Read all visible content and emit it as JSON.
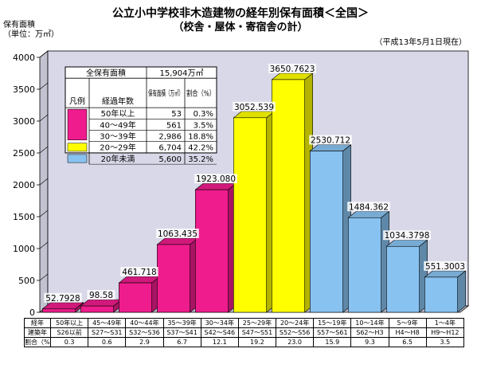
{
  "title": "公立小中学校非木造建物の経年別保有面積＜全国＞",
  "subtitle": "（校舎・屋体・寄宿舎の計）",
  "date_note": "（平成13年5月1日現在）",
  "ylabel_lines": [
    "保有面積",
    "（単位：万㎡）"
  ],
  "colors": {
    "magenta": "#ee1c8c",
    "yellow": "#ffff00",
    "blue": "#88c2f0",
    "back_wall": "#d8d8e8",
    "floor": "#b8b8c8"
  },
  "legend": {
    "total_label": "全保有面積",
    "total_value": "15,904万㎡",
    "header_legend": "凡例",
    "header_age": "経過年数",
    "header_area": "保有面積（万㎡）",
    "header_ratio": "割合（%）",
    "rows": [
      {
        "age": "50年以上",
        "area": "53",
        "ratio": "0.3%",
        "color": "#ee1c8c"
      },
      {
        "age": "40～49年",
        "area": "561",
        "ratio": "3.5%",
        "color": "#ee1c8c"
      },
      {
        "age": "30～39年",
        "area": "2,986",
        "ratio": "18.8%",
        "color": "#ee1c8c"
      },
      {
        "age": "20～29年",
        "area": "6,704",
        "ratio": "42.2%",
        "color": "#ffff00"
      },
      {
        "age": "20年未満",
        "area": "5,600",
        "ratio": "35.2%",
        "color": "#88c2f0"
      }
    ]
  },
  "table": {
    "row_headers": [
      "経年",
      "建築年",
      "割合（%）"
    ],
    "keinen": [
      "50年以上",
      "45～49年",
      "40～44年",
      "35～39年",
      "30～34年",
      "25～29年",
      "20～24年",
      "15～19年",
      "10～14年",
      "5～9年",
      "1～4年"
    ],
    "kenchiku": [
      "S26以前",
      "S27～S31",
      "S32～S36",
      "S37～S41",
      "S42～S46",
      "S47～S51",
      "S52～S56",
      "S57～S61",
      "S62～H3",
      "H4～H8",
      "H9～H12"
    ],
    "ratio": [
      "0.3",
      "0.6",
      "2.9",
      "6.7",
      "12.1",
      "19.2",
      "23.0",
      "15.9",
      "9.3",
      "6.5",
      "3.5"
    ]
  },
  "chart_data": {
    "type": "bar",
    "title": "公立小中学校非木造建物の経年別保有面積＜全国＞",
    "subtitle": "（校舎・屋体・寄宿舎の計）",
    "ylabel": "保有面積（単位：万㎡）",
    "ylim": [
      0,
      4000
    ],
    "yticks": [
      0,
      500,
      1000,
      1500,
      2000,
      2500,
      3000,
      3500,
      4000
    ],
    "categories": [
      "50年以上",
      "45～49年",
      "40～44年",
      "35～39年",
      "30～34年",
      "25～29年",
      "20～24年",
      "15～19年",
      "10～14年",
      "5～9年",
      "1～4年"
    ],
    "values": [
      52.7928,
      98.58,
      461.718,
      1063.435,
      1923.08,
      3052.539,
      3650.7623,
      2530.712,
      1484.362,
      1034.3798,
      551.3003
    ],
    "value_labels": [
      "52.7928",
      "98.58",
      "461.718",
      "1063.435",
      "1923.080",
      "3052.539",
      "3650.7623",
      "2530.712",
      "1484.362",
      "1034.3798",
      "551.3003"
    ],
    "bar_colors": [
      "#ee1c8c",
      "#ee1c8c",
      "#ee1c8c",
      "#ee1c8c",
      "#ee1c8c",
      "#ffff00",
      "#ffff00",
      "#88c2f0",
      "#88c2f0",
      "#88c2f0",
      "#88c2f0"
    ],
    "grid": false
  }
}
